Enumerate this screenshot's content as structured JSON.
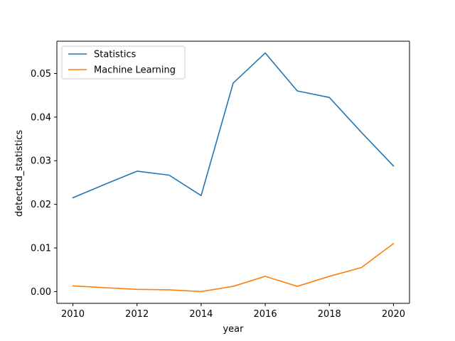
{
  "chart_data": {
    "type": "line",
    "title": "",
    "xlabel": "year",
    "ylabel": "detected_statistics",
    "xlim": [
      2009.5,
      2020.5
    ],
    "ylim": [
      -0.0027,
      0.0574
    ],
    "xticks": [
      2010,
      2012,
      2014,
      2016,
      2018,
      2020
    ],
    "xtick_labels": [
      "2010",
      "2012",
      "2014",
      "2016",
      "2018",
      "2020"
    ],
    "yticks": [
      0.0,
      0.01,
      0.02,
      0.03,
      0.04,
      0.05
    ],
    "ytick_labels": [
      "0.00",
      "0.01",
      "0.02",
      "0.03",
      "0.04",
      "0.05"
    ],
    "grid": false,
    "legend_position": "upper-left",
    "x": [
      2010,
      2011,
      2012,
      2013,
      2014,
      2015,
      2016,
      2017,
      2018,
      2019,
      2020
    ],
    "series": [
      {
        "name": "Statistics",
        "color": "#1f77b4",
        "values": [
          0.0215,
          0.0246,
          0.0276,
          0.0267,
          0.022,
          0.0478,
          0.0547,
          0.046,
          0.0445,
          0.0365,
          0.0288
        ]
      },
      {
        "name": "Machine Learning",
        "color": "#ff7f0e",
        "values": [
          0.0013,
          0.0009,
          0.0005,
          0.0004,
          0.0,
          0.0012,
          0.0035,
          0.0012,
          0.0035,
          0.0055,
          0.011
        ]
      }
    ]
  }
}
